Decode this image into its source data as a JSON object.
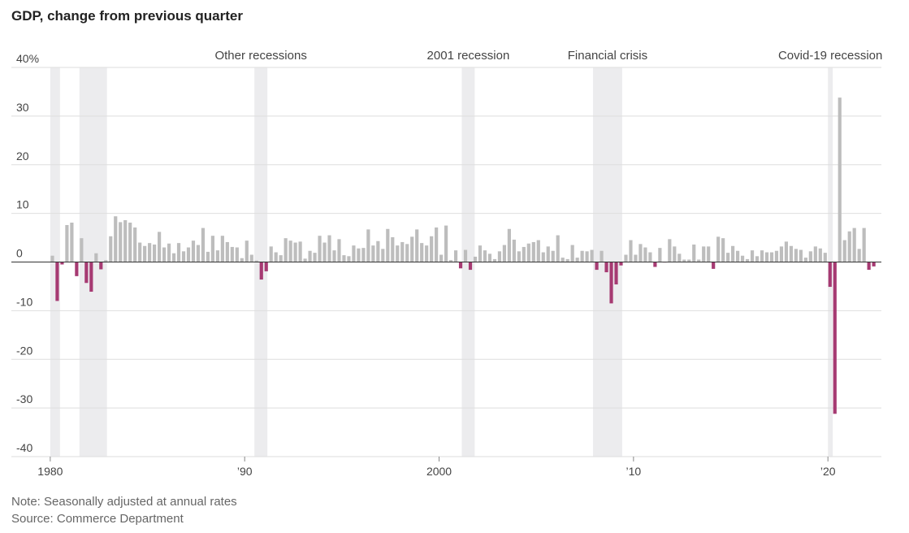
{
  "chart_data": {
    "type": "bar",
    "title": "GDP, change from previous quarter",
    "notes": [
      "Note: Seasonally adjusted at annual rates",
      "Source: Commerce Department"
    ],
    "x": [
      1980,
      1980.25,
      1980.5,
      1980.75,
      1981,
      1981.25,
      1981.5,
      1981.75,
      1982,
      1982.25,
      1982.5,
      1982.75,
      1983,
      1983.25,
      1983.5,
      1983.75,
      1984,
      1984.25,
      1984.5,
      1984.75,
      1985,
      1985.25,
      1985.5,
      1985.75,
      1986,
      1986.25,
      1986.5,
      1986.75,
      1987,
      1987.25,
      1987.5,
      1987.75,
      1988,
      1988.25,
      1988.5,
      1988.75,
      1989,
      1989.25,
      1989.5,
      1989.75,
      1990,
      1990.25,
      1990.5,
      1990.75,
      1991,
      1991.25,
      1991.5,
      1991.75,
      1992,
      1992.25,
      1992.5,
      1992.75,
      1993,
      1993.25,
      1993.5,
      1993.75,
      1994,
      1994.25,
      1994.5,
      1994.75,
      1995,
      1995.25,
      1995.5,
      1995.75,
      1996,
      1996.25,
      1996.5,
      1996.75,
      1997,
      1997.25,
      1997.5,
      1997.75,
      1998,
      1998.25,
      1998.5,
      1998.75,
      1999,
      1999.25,
      1999.5,
      1999.75,
      2000,
      2000.25,
      2000.5,
      2000.75,
      2001,
      2001.25,
      2001.5,
      2001.75,
      2002,
      2002.25,
      2002.5,
      2002.75,
      2003,
      2003.25,
      2003.5,
      2003.75,
      2004,
      2004.25,
      2004.5,
      2004.75,
      2005,
      2005.25,
      2005.5,
      2005.75,
      2006,
      2006.25,
      2006.5,
      2006.75,
      2007,
      2007.25,
      2007.5,
      2007.75,
      2008,
      2008.25,
      2008.5,
      2008.75,
      2009,
      2009.25,
      2009.5,
      2009.75,
      2010,
      2010.25,
      2010.5,
      2010.75,
      2011,
      2011.25,
      2011.5,
      2011.75,
      2012,
      2012.25,
      2012.5,
      2012.75,
      2013,
      2013.25,
      2013.5,
      2013.75,
      2014,
      2014.25,
      2014.5,
      2014.75,
      2015,
      2015.25,
      2015.5,
      2015.75,
      2016,
      2016.25,
      2016.5,
      2016.75,
      2017,
      2017.25,
      2017.5,
      2017.75,
      2018,
      2018.25,
      2018.5,
      2018.75,
      2019,
      2019.25,
      2019.5,
      2019.75,
      2020,
      2020.25,
      2020.5,
      2020.75,
      2021,
      2021.25,
      2021.5,
      2021.75,
      2022,
      2022.25
    ],
    "series": [
      {
        "color": "#bdbdbd",
        "negative_color": "#a63a72",
        "values": [
          1.3,
          -8.0,
          -0.5,
          7.6,
          8.1,
          -2.9,
          4.9,
          -4.3,
          -6.1,
          1.8,
          -1.5,
          0.4,
          5.3,
          9.4,
          8.2,
          8.6,
          8.1,
          7.1,
          4.0,
          3.3,
          3.9,
          3.6,
          6.2,
          3.0,
          3.8,
          1.8,
          3.9,
          2.2,
          3.0,
          4.4,
          3.5,
          7.0,
          2.1,
          5.4,
          2.4,
          5.4,
          4.1,
          3.1,
          3.0,
          0.8,
          4.4,
          1.5,
          0.3,
          -3.6,
          -1.9,
          3.2,
          2.0,
          1.4,
          4.9,
          4.4,
          4.0,
          4.2,
          0.7,
          2.3,
          1.9,
          5.4,
          4.0,
          5.5,
          2.4,
          4.7,
          1.4,
          1.2,
          3.4,
          2.8,
          2.9,
          6.7,
          3.4,
          4.3,
          2.7,
          6.8,
          5.1,
          3.4,
          4.1,
          3.7,
          5.2,
          6.7,
          3.9,
          3.4,
          5.3,
          7.1,
          1.5,
          7.5,
          0.4,
          2.4,
          -1.3,
          2.5,
          -1.6,
          1.1,
          3.4,
          2.4,
          1.7,
          0.6,
          2.2,
          3.5,
          6.8,
          4.6,
          2.2,
          3.1,
          3.8,
          4.1,
          4.5,
          2.0,
          3.2,
          2.3,
          5.5,
          0.9,
          0.6,
          3.5,
          0.9,
          2.3,
          2.2,
          2.5,
          -1.6,
          2.3,
          -2.1,
          -8.5,
          -4.6,
          -0.7,
          1.5,
          4.5,
          1.5,
          3.7,
          3.0,
          2.0,
          -1.0,
          2.9,
          -0.1,
          4.7,
          3.2,
          1.7,
          0.5,
          0.5,
          3.6,
          0.5,
          3.2,
          3.2,
          -1.4,
          5.2,
          4.9,
          1.9,
          3.3,
          2.3,
          1.3,
          0.6,
          2.4,
          1.2,
          2.4,
          2.0,
          2.0,
          2.3,
          3.2,
          4.2,
          3.3,
          2.7,
          2.5,
          0.9,
          2.2,
          3.2,
          2.8,
          1.9,
          -5.1,
          -31.2,
          33.8,
          4.5,
          6.3,
          7.0,
          2.7,
          7.0,
          -1.6,
          -0.9
        ]
      }
    ],
    "xlim": [
      1978,
      2022.75
    ],
    "xticks": [
      1980,
      {
        "value": 1990,
        "label": "’90"
      },
      2000,
      {
        "value": 2010,
        "label": "’10"
      },
      {
        "value": 2020,
        "label": "’20"
      }
    ],
    "ylim": [
      -40,
      40
    ],
    "yticks": [
      -40,
      -30,
      -20,
      -10,
      0,
      10,
      20,
      30,
      {
        "value": 40,
        "label": "40%"
      }
    ],
    "grid": true,
    "shaded_periods": [
      {
        "start": 1980,
        "end": 1980.5
      },
      {
        "start": 1981.5,
        "end": 1982.917
      },
      {
        "start": 1990.5,
        "end": 1991.167,
        "label": "Other recessions"
      },
      {
        "start": 2001.167,
        "end": 2001.833,
        "label": "2001 recession"
      },
      {
        "start": 2007.917,
        "end": 2009.417,
        "label": "Financial crisis"
      },
      {
        "start": 2020,
        "end": 2020.25,
        "label": "Covid-19 recession"
      }
    ]
  }
}
